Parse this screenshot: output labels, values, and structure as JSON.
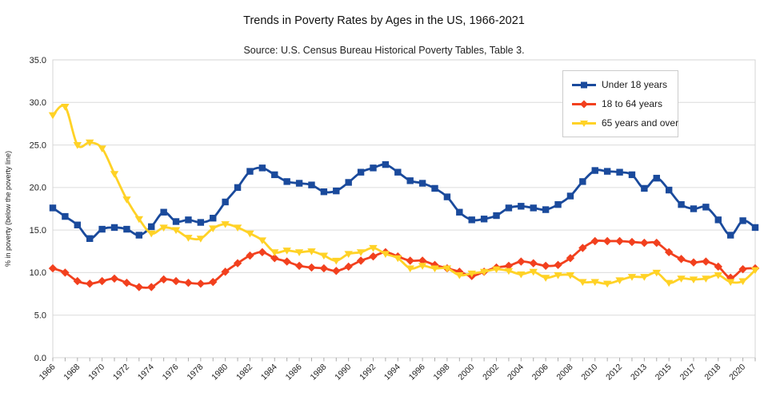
{
  "header": {
    "title": "Trends in Poverty Rates by Ages in the US, 1966-2021",
    "subtitle": "Source: U.S. Census Bureau Historical Poverty Tables, Table 3."
  },
  "axes": {
    "y_title": "% in poverty (below the poverty line)",
    "y_tick_labels": [
      "0.0",
      "5.0",
      "10.0",
      "15.0",
      "20.0",
      "25.0",
      "30.0",
      "35.0"
    ],
    "x_tick_label_every": 2
  },
  "colors": {
    "grid": "#dcdcdc",
    "plot_border": "#d4d4d4",
    "tick": "#aaaaaa",
    "axis_text": "#212121"
  },
  "chart_data": {
    "type": "line",
    "title": "Trends in Poverty Rates by Ages in the US, 1966-2021",
    "subtitle": "Source: U.S. Census Bureau Historical Poverty Tables, Table 3.",
    "xlabel": "",
    "ylabel": "% in poverty (below the poverty line)",
    "ylim": [
      0,
      35
    ],
    "y_tick_step": 5,
    "grid": "horizontal",
    "smooth_lines": true,
    "legend_position": "top-right-inside",
    "x_labels": [
      "1966",
      "1967",
      "1968",
      "1969",
      "1970",
      "1971",
      "1972",
      "1973",
      "1974",
      "1975",
      "1976",
      "1977",
      "1978",
      "1979",
      "1980",
      "1981",
      "1982",
      "1983",
      "1984",
      "1985",
      "1986",
      "1987",
      "1988",
      "1989",
      "1990",
      "1991",
      "1992",
      "1993",
      "1994",
      "1995",
      "1996",
      "1997",
      "1998",
      "1999",
      "2000",
      "2001",
      "2002",
      "2003",
      "2004",
      "2005",
      "2006",
      "2007",
      "2008",
      "2009",
      "2010",
      "2011",
      "2012",
      "2013",
      "2013",
      "2014",
      "2015",
      "2016",
      "2017",
      "2017",
      "2018",
      "2019",
      "2020",
      "2021"
    ],
    "series": [
      {
        "name": "Under 18 years",
        "color": "#1a4a9c",
        "marker": "square",
        "values": [
          17.6,
          16.6,
          15.6,
          14.0,
          15.1,
          15.3,
          15.1,
          14.4,
          15.4,
          17.1,
          16.0,
          16.2,
          15.9,
          16.4,
          18.3,
          20.0,
          21.9,
          22.3,
          21.5,
          20.7,
          20.5,
          20.3,
          19.5,
          19.6,
          20.6,
          21.8,
          22.3,
          22.7,
          21.8,
          20.8,
          20.5,
          19.9,
          18.9,
          17.1,
          16.2,
          16.3,
          16.7,
          17.6,
          17.8,
          17.6,
          17.4,
          18.0,
          19.0,
          20.7,
          22.0,
          21.9,
          21.8,
          21.5,
          19.9,
          21.1,
          19.7,
          18.0,
          17.5,
          17.7,
          16.2,
          14.4,
          16.1,
          15.3
        ]
      },
      {
        "name": "18 to 64 years",
        "color": "#f2401e",
        "marker": "diamond",
        "values": [
          10.5,
          10.0,
          9.0,
          8.7,
          9.0,
          9.3,
          8.8,
          8.3,
          8.3,
          9.2,
          9.0,
          8.8,
          8.7,
          8.9,
          10.1,
          11.1,
          12.0,
          12.4,
          11.7,
          11.3,
          10.8,
          10.6,
          10.5,
          10.2,
          10.7,
          11.4,
          11.9,
          12.4,
          11.9,
          11.4,
          11.4,
          10.9,
          10.5,
          10.1,
          9.6,
          10.1,
          10.6,
          10.8,
          11.3,
          11.1,
          10.8,
          10.9,
          11.7,
          12.9,
          13.7,
          13.7,
          13.7,
          13.6,
          13.5,
          13.5,
          12.4,
          11.6,
          11.2,
          11.3,
          10.7,
          9.4,
          10.4,
          10.5
        ]
      },
      {
        "name": "65 years and over",
        "color": "#ffd226",
        "marker": "triangle-down",
        "values": [
          28.5,
          29.5,
          25.0,
          25.3,
          24.6,
          21.6,
          18.6,
          16.3,
          14.6,
          15.3,
          15.0,
          14.1,
          14.0,
          15.2,
          15.7,
          15.3,
          14.6,
          13.8,
          12.4,
          12.6,
          12.4,
          12.5,
          12.0,
          11.4,
          12.2,
          12.4,
          12.9,
          12.2,
          11.7,
          10.5,
          10.8,
          10.5,
          10.5,
          9.7,
          9.9,
          10.1,
          10.4,
          10.2,
          9.8,
          10.1,
          9.4,
          9.7,
          9.7,
          8.9,
          8.9,
          8.7,
          9.1,
          9.5,
          9.5,
          10.0,
          8.8,
          9.3,
          9.2,
          9.3,
          9.7,
          8.9,
          9.0,
          10.3
        ]
      }
    ]
  }
}
